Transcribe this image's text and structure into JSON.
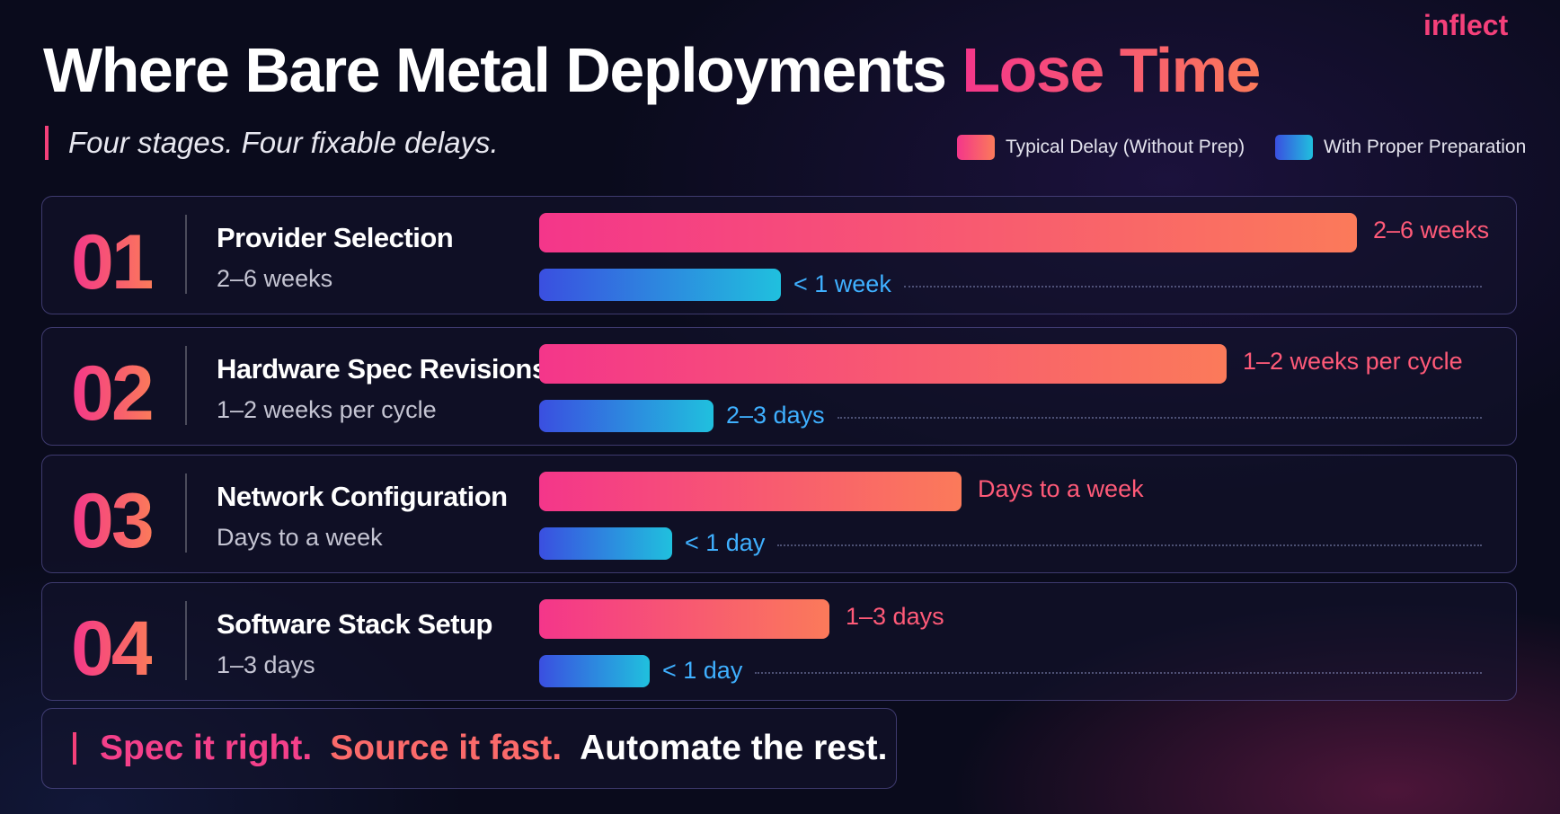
{
  "header": {
    "logo": "inflect",
    "title": "Where Bare Metal Deployments",
    "title_highlight": "Lose Time",
    "subtitle": "Four stages. Four fixable delays."
  },
  "legend": {
    "typical": "Typical Delay (Without Prep)",
    "prepared": "With Proper Preparation"
  },
  "rows": [
    {
      "number": "01",
      "name": "Provider Selection",
      "detail": "2–6 weeks",
      "typical": "2–6 weeks",
      "prepared": "< 1 week"
    },
    {
      "number": "02",
      "name": "Hardware Spec Revisions",
      "detail": "1–2 weeks per cycle",
      "typical": "1–2 weeks per cycle",
      "prepared": "2–3 days"
    },
    {
      "number": "03",
      "name": "Network Configuration",
      "detail": "Days to a week",
      "typical": "Days to a week",
      "prepared": "< 1 day"
    },
    {
      "number": "04",
      "name": "Software Stack Setup",
      "detail": "1–3 days",
      "typical": "1–3 days",
      "prepared": "< 1 day"
    }
  ],
  "tagline": {
    "part1": "Spec it right.",
    "part2": "Source it fast.",
    "part3": "Automate the rest."
  }
}
